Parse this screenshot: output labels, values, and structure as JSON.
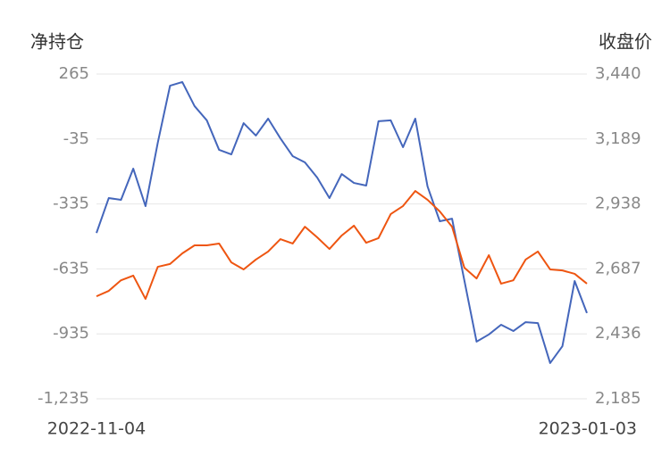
{
  "chart_data": {
    "type": "line",
    "ylabel": "净持仓",
    "y2label": "收盘价",
    "categories": [
      "2022-11-04",
      null,
      null,
      null,
      null,
      null,
      null,
      null,
      null,
      null,
      null,
      null,
      null,
      null,
      null,
      null,
      null,
      null,
      null,
      null,
      null,
      null,
      null,
      null,
      null,
      null,
      null,
      null,
      null,
      null,
      null,
      null,
      null,
      null,
      null,
      null,
      null,
      null,
      null,
      null,
      "2023-01-03"
    ],
    "ylim": [
      -1235,
      265
    ],
    "yticks": [
      265,
      -35,
      -335,
      -635,
      -935,
      {
        "value": -1235,
        "label": "-1,235"
      }
    ],
    "y2lim": [
      2185,
      3440
    ],
    "y2ticks": [
      {
        "value": 3440,
        "label": "3,440"
      },
      {
        "value": 3189,
        "label": "3,189"
      },
      {
        "value": 2938,
        "label": "2,938"
      },
      {
        "value": 2687,
        "label": "2,687"
      },
      {
        "value": 2436,
        "label": "2,436"
      },
      {
        "value": 2185,
        "label": "2,185"
      }
    ],
    "grid": true,
    "series": [
      {
        "color": "#4466bb",
        "values": [
          -469,
          -308,
          -316,
          -172,
          -345,
          -52,
          211,
          228,
          117,
          51,
          -85,
          -106,
          38,
          -19,
          59,
          -32,
          -114,
          -143,
          -213,
          -308,
          -197,
          -238,
          -250,
          47,
          51,
          -73,
          59,
          -254,
          -415,
          -403,
          -687,
          -971,
          -938,
          -893,
          -922,
          -881,
          -885,
          -1070,
          -992,
          -691,
          -839
        ]
      },
      {
        "color": "#ee5511",
        "axis": "y2",
        "values": [
          2581,
          2602,
          2643,
          2661,
          2571,
          2695,
          2706,
          2747,
          2778,
          2778,
          2785,
          2712,
          2685,
          2723,
          2754,
          2802,
          2785,
          2850,
          2809,
          2764,
          2816,
          2854,
          2788,
          2806,
          2899,
          2930,
          2988,
          2954,
          2909,
          2850,
          2692,
          2650,
          2740,
          2630,
          2643,
          2723,
          2754,
          2685,
          2681,
          2668,
          2630
        ]
      }
    ]
  }
}
